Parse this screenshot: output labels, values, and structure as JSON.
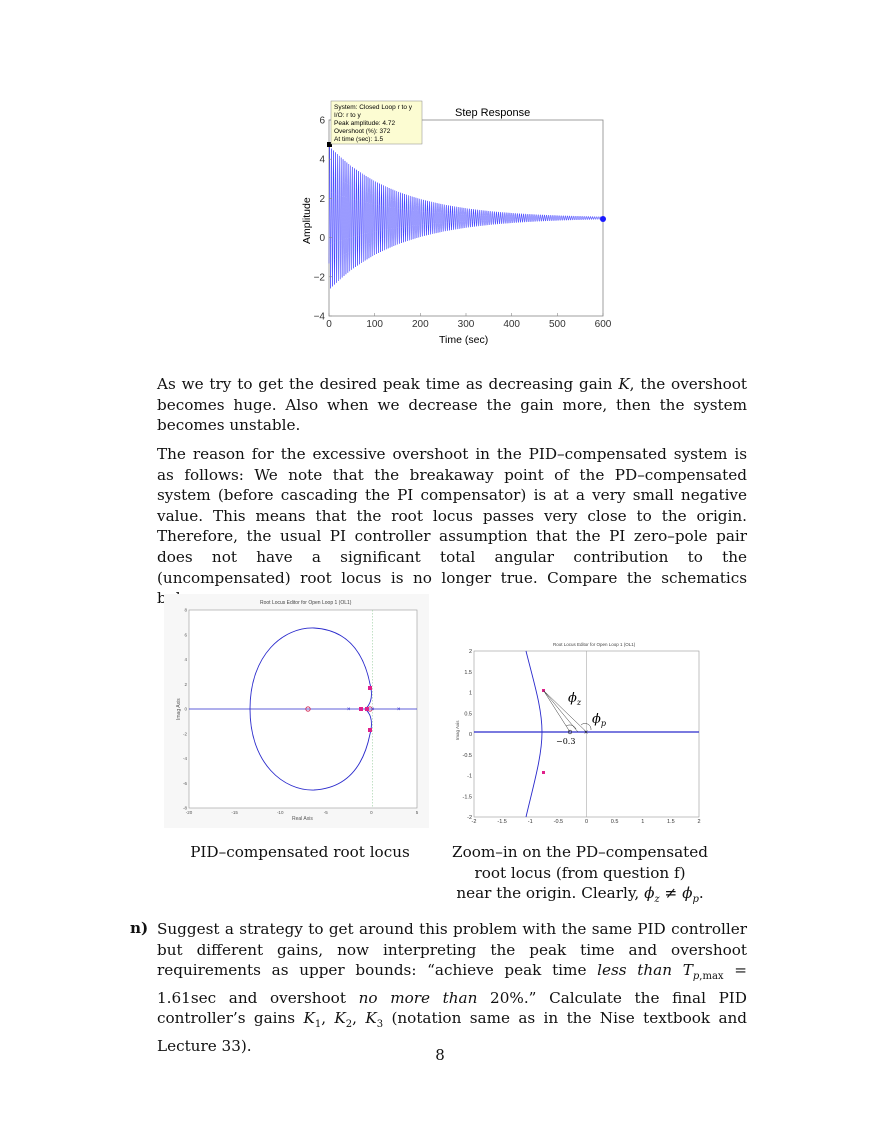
{
  "step_figure": {
    "title": "Step Response",
    "xlabel": "Time (sec)",
    "ylabel": "Amplitude",
    "datatip": {
      "line1": "System: Closed Loop r to y",
      "line2": "I/O: r to y",
      "line3": "Peak amplitude: 4.72",
      "line4": "Overshoot (%): 372",
      "line5": "At time (sec): 1.5"
    }
  },
  "chart_data": [
    {
      "type": "line",
      "title": "Step Response",
      "xlabel": "Time (sec)",
      "ylabel": "Amplitude",
      "xlim": [
        0,
        600
      ],
      "ylim": [
        -4,
        6
      ],
      "xticks": [
        "0",
        "100",
        "200",
        "300",
        "400",
        "500",
        "600"
      ],
      "yticks": [
        "−4",
        "−2",
        "0",
        "2",
        "4",
        "6"
      ],
      "final_value": 1,
      "peak_amplitude": 4.72,
      "peak_time": 1.5,
      "envelope_upper": [
        [
          0,
          4.72
        ],
        [
          100,
          2.65
        ],
        [
          200,
          1.75
        ],
        [
          300,
          1.33
        ],
        [
          400,
          1.15
        ],
        [
          500,
          1.06
        ],
        [
          600,
          1.0
        ]
      ],
      "envelope_lower": [
        [
          0,
          -2.7
        ],
        [
          100,
          -0.65
        ],
        [
          200,
          0.25
        ],
        [
          300,
          0.67
        ],
        [
          400,
          0.85
        ],
        [
          500,
          0.94
        ],
        [
          600,
          1.0
        ]
      ],
      "grid": false
    },
    {
      "type": "line",
      "title": "Root Locus Editor for Open Loop 1 (OL1)",
      "xlabel": "Real Axis",
      "ylabel": "Imag Axis",
      "xlim": [
        -20,
        5
      ],
      "ylim": [
        -8,
        8
      ],
      "xticks": [
        "-20",
        "-15",
        "-10",
        "-5",
        "0",
        "5"
      ],
      "yticks": [
        "-8",
        "-6",
        "-4",
        "-2",
        "0",
        "2",
        "4",
        "6",
        "8"
      ],
      "poles": [
        [
          0,
          0
        ],
        [
          -1.2,
          0
        ],
        [
          3,
          0
        ],
        [
          -14,
          0
        ]
      ],
      "zeros": [
        [
          -7,
          0
        ],
        [
          -0.3,
          0
        ]
      ],
      "closed_loop_poles": [
        [
          -0.15,
          1.7
        ],
        [
          -0.15,
          -1.7
        ],
        [
          -1.2,
          0
        ],
        [
          -0.3,
          0
        ]
      ],
      "grid": false
    },
    {
      "type": "line",
      "title": "Root Locus Editor for Open Loop 1 (OL1)",
      "xlabel": "",
      "ylabel": "Imag Axis",
      "xlim": [
        -2,
        2
      ],
      "ylim": [
        -2,
        2
      ],
      "xticks": [
        "-2",
        "-1.5",
        "-1",
        "-0.5",
        "0",
        "0.5",
        "1",
        "1.5",
        "2"
      ],
      "yticks": [
        "-2",
        "-1.5",
        "-1",
        "-0.5",
        "0",
        "0.5",
        "1",
        "1.5",
        "2"
      ],
      "zero_label": "−0.3",
      "phi_z": "ϕ",
      "phi_z_sub": "z",
      "phi_p": "ϕ",
      "phi_p_sub": "p",
      "grid": false
    }
  ],
  "rl_big": {
    "title": "Root Locus Editor for Open Loop 1 (OL1)",
    "xlabel": "Real Axis",
    "ylabel": "Imag Axis"
  },
  "rl_small": {
    "title": "Root Locus Editor for Open Loop 1 (OL1)",
    "ylabel": "Imag Axis",
    "zero_label": "−0.3"
  },
  "para1": "As we try to get the desired peak time as decreasing gain K, the overshoot becomes huge. Also when we decrease the gain more, then the system becomes unstable.",
  "para2": "The reason for the excessive overshoot in the PID–compensated system is as follows: We note that the breakaway point of the PD–compensated system (before cascading the PI compensator) is at a very small negative value. This means that the root locus passes very close to the origin. Therefore, the usual PI controller assumption that the PI zero–pole pair does not have a significant total angular contribution to the (uncompensated) root locus is no longer true. Compare the schematics below.",
  "caption_left": "PID–compensated root locus",
  "caption_right_line1": "Zoom–in on the PD–compensated",
  "caption_right_line2": "root locus (from question f)",
  "caption_right_line3": "near the origin. Clearly, ϕz ≠ ϕp.",
  "question_label": "n)",
  "question_text": "Suggest a strategy to get around this problem with the same PID controller but different gains, now interpreting the peak time and overshoot requirements as upper bounds: “achieve peak time less than Tp,max = 1.61sec and overshoot no more than 20%.” Calculate the final PID controller’s gains K1, K2, K3 (notation same as in the Nise textbook and Lecture 33).",
  "page_number": "8"
}
